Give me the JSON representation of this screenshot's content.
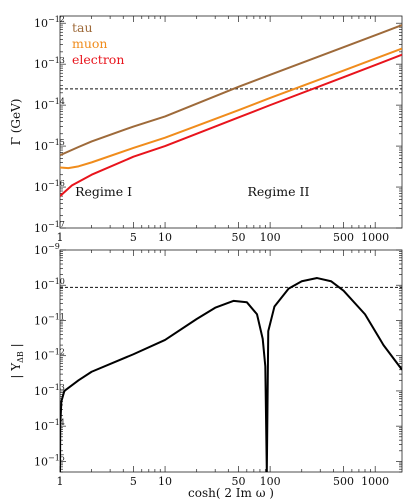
{
  "chart_data": [
    {
      "type": "line",
      "xscale": "log",
      "yscale": "log",
      "xlim": [
        1,
        1800
      ],
      "ylim": [
        1e-17,
        1.5e-12
      ],
      "ylabel": "Γ (GeV)",
      "xlabel": "",
      "xticks": [
        {
          "v": 1,
          "label": "1"
        },
        {
          "v": 5,
          "label": "5"
        },
        {
          "v": 10,
          "label": "10"
        },
        {
          "v": 50,
          "label": "50"
        },
        {
          "v": 100,
          "label": "100"
        },
        {
          "v": 500,
          "label": "500"
        },
        {
          "v": 1000,
          "label": "1000"
        }
      ],
      "yticks": [
        {
          "v": 1e-17,
          "label": "10",
          "exp": "−17"
        },
        {
          "v": 1e-16,
          "label": "10",
          "exp": "−16"
        },
        {
          "v": 1e-15,
          "label": "10",
          "exp": "−15"
        },
        {
          "v": 1e-14,
          "label": "10",
          "exp": "−14"
        },
        {
          "v": 1e-13,
          "label": "10",
          "exp": "−13"
        },
        {
          "v": 1e-12,
          "label": "10",
          "exp": "−12"
        }
      ],
      "hline": 2.5e-14,
      "annotations": [
        {
          "text": "Regime I",
          "x": 2.6,
          "y": 6e-17
        },
        {
          "text": "Regime II",
          "x": 120,
          "y": 6e-17
        }
      ],
      "legend_position": "top-left",
      "series": [
        {
          "name": "tau",
          "color": "#9e6a3a",
          "points": [
            [
              1,
              6e-16
            ],
            [
              1.5,
              9.5e-16
            ],
            [
              2,
              1.3e-15
            ],
            [
              5,
              3e-15
            ],
            [
              10,
              5.3e-15
            ],
            [
              50,
              2.8e-14
            ],
            [
              100,
              5.5e-14
            ],
            [
              500,
              2.6e-13
            ],
            [
              1800,
              9e-13
            ]
          ]
        },
        {
          "name": "muon",
          "color": "#f08c1c",
          "points": [
            [
              1,
              3e-16
            ],
            [
              1.2,
              2.9e-16
            ],
            [
              1.5,
              3.2e-16
            ],
            [
              2,
              4e-16
            ],
            [
              5,
              9e-16
            ],
            [
              10,
              1.6e-15
            ],
            [
              50,
              7.5e-15
            ],
            [
              100,
              1.5e-14
            ],
            [
              500,
              7e-14
            ],
            [
              1800,
              2.4e-13
            ]
          ]
        },
        {
          "name": "electron",
          "color": "#e8141c",
          "points": [
            [
              1,
              6e-17
            ],
            [
              1.3,
              1.1e-16
            ],
            [
              2,
              2e-16
            ],
            [
              5,
              5.5e-16
            ],
            [
              10,
              1e-15
            ],
            [
              50,
              5e-15
            ],
            [
              100,
              1e-14
            ],
            [
              500,
              4.8e-14
            ],
            [
              1800,
              1.7e-13
            ]
          ]
        }
      ]
    },
    {
      "type": "line",
      "xscale": "log",
      "yscale": "log",
      "xlim": [
        1,
        1800
      ],
      "ylim": [
        5e-16,
        1e-09
      ],
      "ylabel": "| Y",
      "ylabel_sub": "ΔB",
      "ylabel_end": " |",
      "xlabel": "cosh( 2 Im ω )",
      "xticks": [
        {
          "v": 1,
          "label": "1"
        },
        {
          "v": 5,
          "label": "5"
        },
        {
          "v": 10,
          "label": "10"
        },
        {
          "v": 50,
          "label": "50"
        },
        {
          "v": 100,
          "label": "100"
        },
        {
          "v": 500,
          "label": "500"
        },
        {
          "v": 1000,
          "label": "1000"
        }
      ],
      "yticks": [
        {
          "v": 1e-15,
          "label": "10",
          "exp": "−15"
        },
        {
          "v": 1e-14,
          "label": "10",
          "exp": "−14"
        },
        {
          "v": 1e-13,
          "label": "10",
          "exp": "−13"
        },
        {
          "v": 1e-12,
          "label": "10",
          "exp": "−12"
        },
        {
          "v": 1e-11,
          "label": "10",
          "exp": "−11"
        },
        {
          "v": 1e-10,
          "label": "10",
          "exp": "−10"
        },
        {
          "v": 1e-09,
          "label": "10",
          "exp": "−9"
        }
      ],
      "hline": 8.7e-11,
      "series": [
        {
          "color": "#000000",
          "points": [
            [
              1,
              5e-16
            ],
            [
              1.005,
              1e-14
            ],
            [
              1.03,
              5e-14
            ],
            [
              1.1,
              1e-13
            ],
            [
              1.5,
              2e-13
            ],
            [
              2,
              3.5e-13
            ],
            [
              5,
              1.1e-12
            ],
            [
              10,
              2.8e-12
            ],
            [
              20,
              1.1e-11
            ],
            [
              30,
              2.3e-11
            ],
            [
              45,
              3.6e-11
            ],
            [
              60,
              3.3e-11
            ],
            [
              75,
              1.5e-11
            ],
            [
              85,
              3e-12
            ],
            [
              90,
              5e-13
            ],
            [
              93,
              5e-16
            ],
            [
              96,
              5e-12
            ],
            [
              110,
              2.5e-11
            ],
            [
              150,
              8e-11
            ],
            [
              200,
              1.3e-10
            ],
            [
              280,
              1.6e-10
            ],
            [
              380,
              1.3e-10
            ],
            [
              500,
              7e-11
            ],
            [
              800,
              1.5e-11
            ],
            [
              1200,
              2e-12
            ],
            [
              1800,
              4e-13
            ]
          ]
        }
      ]
    }
  ]
}
